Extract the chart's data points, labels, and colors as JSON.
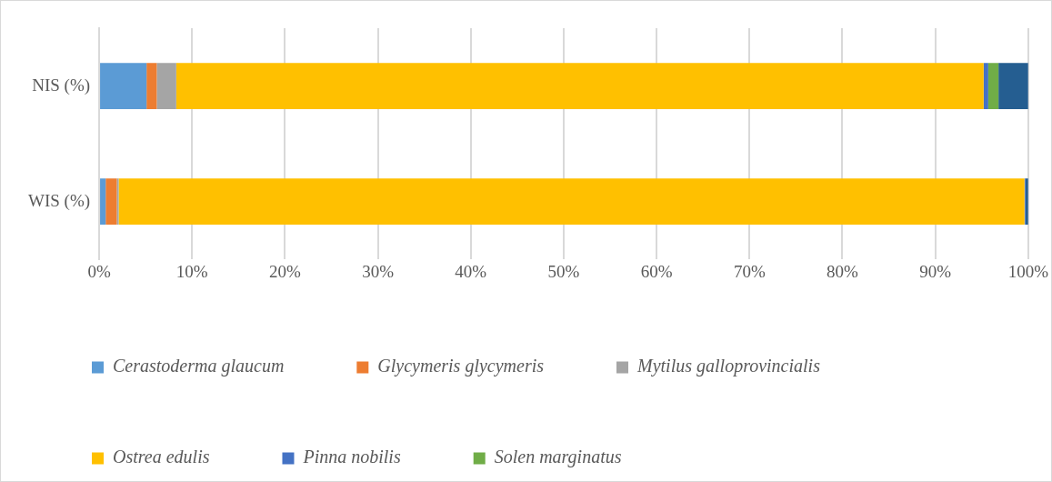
{
  "chart_data": {
    "type": "bar",
    "orientation": "horizontal",
    "stacked": true,
    "categories": [
      "NIS (%)",
      "WIS (%)"
    ],
    "series": [
      {
        "name": "Cerastoderma glaucum",
        "color": "#5b9bd5",
        "values": [
          5.1,
          0.7
        ]
      },
      {
        "name": "Glycymeris glycymeris",
        "color": "#ed7d31",
        "values": [
          1.1,
          1.2
        ]
      },
      {
        "name": "Mytilus galloprovincialis",
        "color": "#a5a5a5",
        "values": [
          2.1,
          0.2
        ]
      },
      {
        "name": "Ostrea edulis",
        "color": "#ffc000",
        "values": [
          86.9,
          97.5
        ]
      },
      {
        "name": "Pinna nobilis",
        "color": "#4472c4",
        "values": [
          0.5,
          0.1
        ]
      },
      {
        "name": "Solen marginatus",
        "color": "#70ad47",
        "values": [
          1.1,
          0
        ]
      },
      {
        "color": "#255e91",
        "values": [
          3.2,
          0.3
        ]
      }
    ],
    "xlim": [
      0,
      100
    ],
    "xticks": [
      {
        "value": 0,
        "label": "0%"
      },
      {
        "value": 10,
        "label": "10%"
      },
      {
        "value": 20,
        "label": "20%"
      },
      {
        "value": 30,
        "label": "30%"
      },
      {
        "value": 40,
        "label": "40%"
      },
      {
        "value": 50,
        "label": "50%"
      },
      {
        "value": 60,
        "label": "60%"
      },
      {
        "value": 70,
        "label": "70%"
      },
      {
        "value": 80,
        "label": "80%"
      },
      {
        "value": 90,
        "label": "90%"
      },
      {
        "value": 100,
        "label": "100%"
      }
    ],
    "grid": "x",
    "legend": "bottom"
  }
}
